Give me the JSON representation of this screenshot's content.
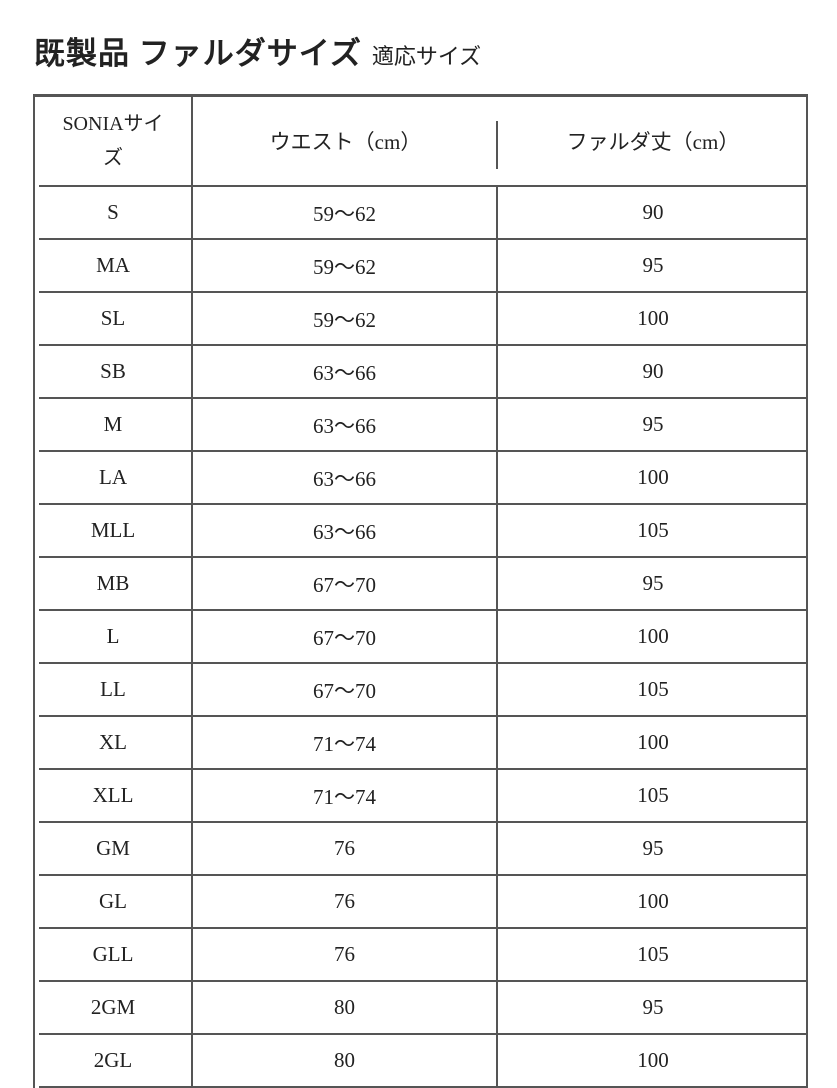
{
  "title": {
    "main": "既製品 ファルダサイズ",
    "sub": "適応サイズ"
  },
  "table": {
    "headers": [
      "SONIAサイズ",
      "ウエスト（cm）",
      "ファルダ丈（cm）"
    ],
    "rows": [
      [
        "S",
        "59〜62",
        "90"
      ],
      [
        "MA",
        "59〜62",
        "95"
      ],
      [
        "SL",
        "59〜62",
        "100"
      ],
      [
        "SB",
        "63〜66",
        "90"
      ],
      [
        "M",
        "63〜66",
        "95"
      ],
      [
        "LA",
        "63〜66",
        "100"
      ],
      [
        "MLL",
        "63〜66",
        "105"
      ],
      [
        "MB",
        "67〜70",
        "95"
      ],
      [
        "L",
        "67〜70",
        "100"
      ],
      [
        "LL",
        "67〜70",
        "105"
      ],
      [
        "XL",
        "71〜74",
        "100"
      ],
      [
        "XLL",
        "71〜74",
        "105"
      ],
      [
        "GM",
        "76",
        "95"
      ],
      [
        "GL",
        "76",
        "100"
      ],
      [
        "GLL",
        "76",
        "105"
      ],
      [
        "2GM",
        "80",
        "95"
      ],
      [
        "2GL",
        "80",
        "100"
      ]
    ]
  }
}
